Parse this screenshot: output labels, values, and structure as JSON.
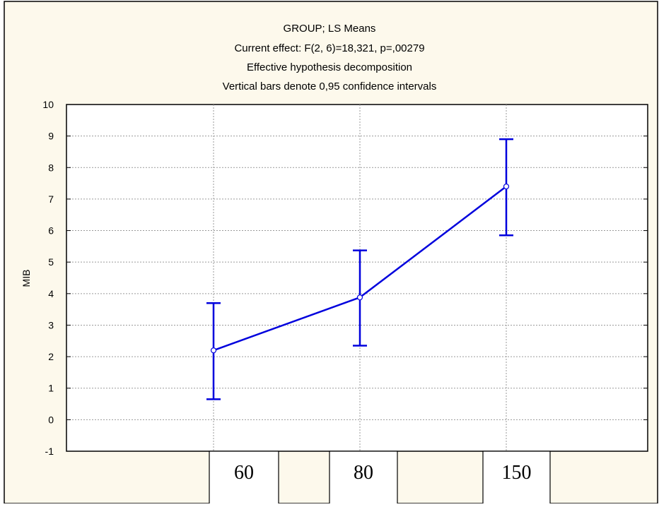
{
  "chart_data": {
    "type": "line",
    "title": "GROUP; LS Means",
    "subtitle_lines": [
      "Current effect: F(2, 6)=18,321, p=,00279",
      "Effective hypothesis decomposition",
      "Vertical bars denote 0,95 confidence intervals"
    ],
    "xlabel": "",
    "ylabel": "MIB",
    "ylim": [
      -1,
      10
    ],
    "yticks": [
      "10",
      "9",
      "8",
      "7",
      "6",
      "5",
      "4",
      "3",
      "2",
      "1",
      "0",
      "-1"
    ],
    "categories": [
      "60",
      "80",
      "150"
    ],
    "series": [
      {
        "values": [
          2.2,
          3.88,
          7.4
        ],
        "ci_lower": [
          0.65,
          2.35,
          5.85
        ],
        "ci_upper": [
          3.7,
          5.37,
          8.9
        ]
      }
    ],
    "grid": true,
    "colors": {
      "background": "#fdf9ec",
      "plot_background": "#ffffff",
      "line": "#0000dd",
      "grid": "#9a9a9a"
    }
  }
}
